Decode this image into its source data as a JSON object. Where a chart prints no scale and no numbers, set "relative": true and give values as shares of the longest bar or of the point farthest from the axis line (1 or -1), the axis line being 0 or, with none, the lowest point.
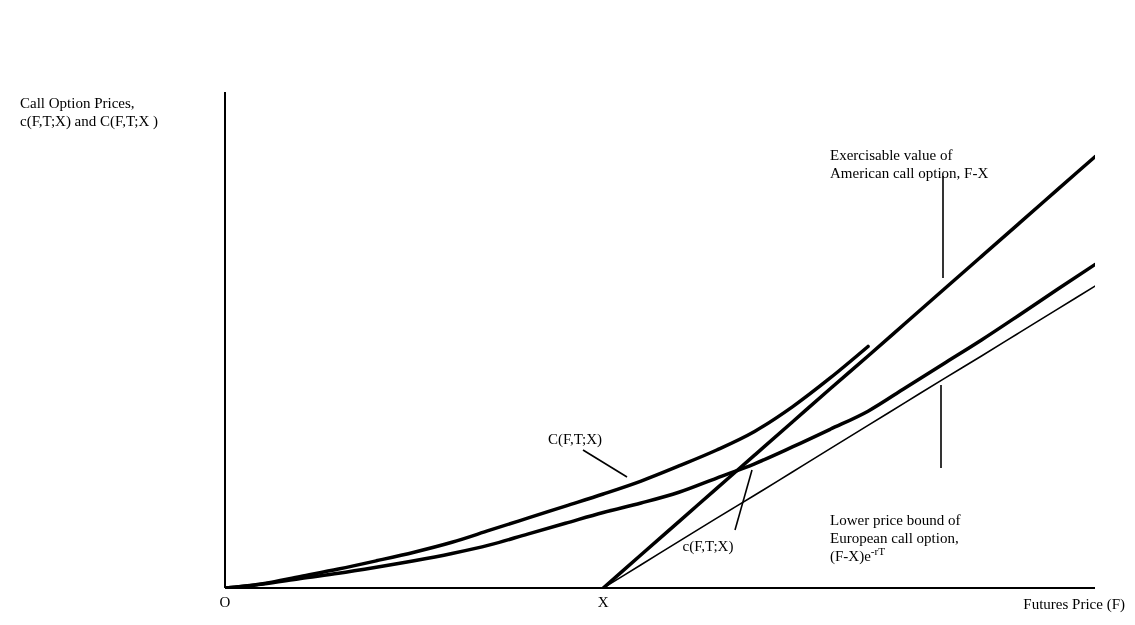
{
  "chart_data": {
    "type": "line",
    "relative": true,
    "ylabel": "Call Option Prices, c(F,T;X) and C(F,T;X )",
    "xlabel": "Futures Price (F)",
    "categories": [
      "O",
      null,
      null,
      null,
      null,
      null,
      null,
      null,
      null,
      null,
      "X",
      null,
      null,
      null,
      null,
      null,
      null,
      null,
      null,
      null,
      null,
      null,
      null,
      null
    ],
    "grid": false,
    "legend": false,
    "marker": "none",
    "line_style": "solid",
    "series": [
      {
        "color": "#000000",
        "values": [
          0,
          0.01,
          0.027,
          0.044,
          0.063,
          0.083,
          0.106,
          0.134,
          0.162,
          0.19,
          0.218,
          0.248,
          0.283,
          0.32,
          0.363,
          0.42,
          0.487,
          0.56,
          null,
          null,
          null,
          null,
          null,
          null
        ]
      },
      {
        "color": "#000000",
        "values": [
          0,
          0.009,
          0.022,
          0.034,
          0.048,
          0.063,
          0.08,
          0.1,
          0.125,
          0.15,
          0.175,
          0.197,
          0.222,
          0.255,
          0.288,
          0.327,
          0.368,
          0.41,
          0.465,
          0.52,
          0.575,
          0.633,
          0.692,
          0.75
        ]
      },
      {
        "color": "#000000",
        "values": [
          null,
          null,
          null,
          null,
          null,
          null,
          null,
          null,
          null,
          null,
          0,
          0.077,
          0.154,
          0.231,
          0.308,
          0.385,
          0.462,
          0.538,
          0.615,
          0.692,
          0.769,
          0.846,
          0.923,
          1
        ]
      },
      {
        "color": "#000000",
        "values": [
          null,
          null,
          null,
          null,
          null,
          null,
          null,
          null,
          null,
          null,
          0,
          0.054,
          0.108,
          0.162,
          0.215,
          0.269,
          0.323,
          0.377,
          0.431,
          0.485,
          0.538,
          0.592,
          0.646,
          0.7
        ]
      }
    ],
    "annotations": [
      "C(F,T;X)",
      "c(F,T;X)",
      "Exercisable value of American call option, F-X",
      "Lower price bound of European call option, (F-X)e$^{-rT}$"
    ]
  }
}
